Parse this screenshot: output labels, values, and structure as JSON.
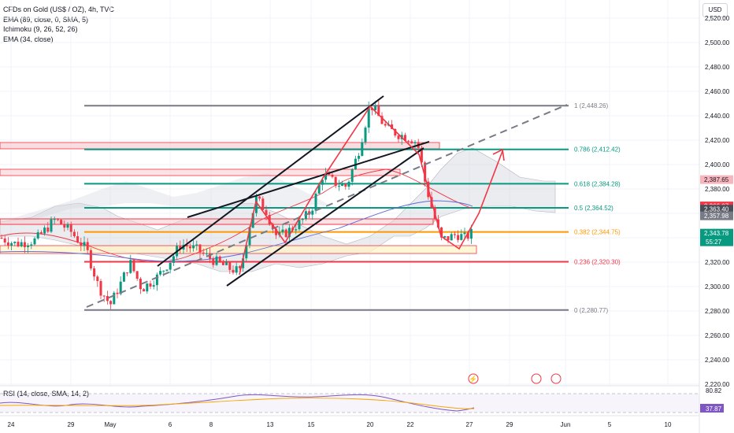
{
  "legend": {
    "title": "CFDs on Gold (US$ / OZ), 4h, TVC",
    "line1": "EMA (89, close, 0, SMA, 5)",
    "line2": "Ichimoku (9, 26, 52, 26)",
    "line3": "EMA (34, close)"
  },
  "currency_button": "USD",
  "rsi_label": "RSI (14, close, SMA, 14, 2)",
  "colors": {
    "up": "#089981",
    "down": "#f23645",
    "fib_gray": "#787b86",
    "fib_green": "#089981",
    "fib_red": "#f23645",
    "fib_orange": "#ff9800",
    "arrow": "#f23645"
  },
  "chart_data": {
    "type": "candlestick",
    "y_axis": {
      "min": 2217,
      "max": 2525,
      "ticks": [
        "2,520.00",
        "2,500.00",
        "2,480.00",
        "2,460.00",
        "2,440.00",
        "2,420.00",
        "2,400.00",
        "2,380.00",
        "2,360.00",
        "2,340.00",
        "2,320.00",
        "2,300.00",
        "2,280.00",
        "2,260.00",
        "2,240.00",
        "2,220.00"
      ],
      "tick_values": [
        2520,
        2500,
        2480,
        2460,
        2440,
        2420,
        2400,
        2380,
        2360,
        2340,
        2320,
        2300,
        2280,
        2260,
        2240,
        2220
      ]
    },
    "x_axis": {
      "labels": [
        "24",
        "29",
        "May",
        "6",
        "8",
        "13",
        "15",
        "20",
        "22",
        "27",
        "29",
        "Jun",
        "5",
        "10"
      ]
    },
    "price_labels": [
      {
        "text": "2,387.65",
        "value": 2387.65,
        "color": "#f7b6bd",
        "text_color": "#131722"
      },
      {
        "text": "2,366.07",
        "value": 2366.07,
        "color": "#f23645",
        "text_color": "#ffffff"
      },
      {
        "text": "2,363.40",
        "value": 2363.4,
        "color": "#4a4e59",
        "text_color": "#ffffff"
      },
      {
        "text": "2,357.98",
        "value": 2357.98,
        "color": "#787b86",
        "text_color": "#ffffff"
      },
      {
        "text": "2,343.78",
        "value": 2343.78,
        "color": "#089981",
        "text_color": "#ffffff",
        "sub": "55:27"
      }
    ],
    "fib_levels": [
      {
        "label": "1 (2,448.26)",
        "value": 2448.26,
        "color": "#787b86"
      },
      {
        "label": "0.786 (2,412.42)",
        "value": 2412.42,
        "color": "#089981"
      },
      {
        "label": "0.618 (2,384.28)",
        "value": 2384.28,
        "color": "#089981"
      },
      {
        "label": "0.5 (2,364.52)",
        "value": 2364.52,
        "color": "#089981"
      },
      {
        "label": "0.382 (2,344.75)",
        "value": 2344.75,
        "color": "#ff9800"
      },
      {
        "label": "0.236 (2,320.30)",
        "value": 2320.3,
        "color": "#f23645"
      },
      {
        "label": "0 (2,280.77)",
        "value": 2280.77,
        "color": "#787b86"
      }
    ],
    "rsi": {
      "ticks": [
        "80.82",
        "37.87"
      ],
      "values": [
        80.82,
        37.87
      ]
    }
  }
}
